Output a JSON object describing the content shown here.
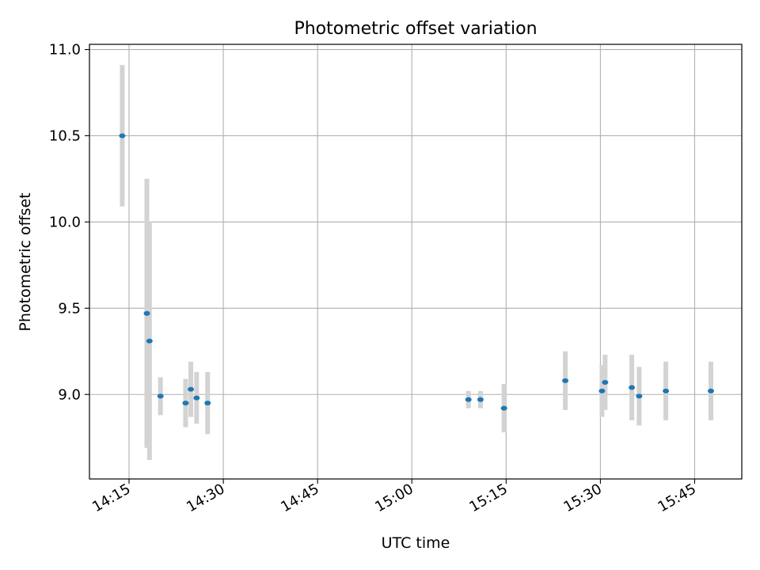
{
  "chart_data": {
    "type": "scatter",
    "title": "Photometric offset variation",
    "xlabel": "UTC time",
    "ylabel": "Photometric offset",
    "x_ticks": [
      "14:15",
      "14:30",
      "14:45",
      "15:00",
      "15:15",
      "15:30",
      "15:45"
    ],
    "x_tick_minutes": [
      855,
      870,
      885,
      900,
      915,
      930,
      945
    ],
    "y_ticks": [
      "9.0",
      "9.5",
      "10.0",
      "10.5",
      "11.0"
    ],
    "y_tick_values": [
      9.0,
      9.5,
      10.0,
      10.5,
      11.0
    ],
    "xlim_minutes": [
      848.7,
      952.5
    ],
    "ylim": [
      8.51,
      11.03
    ],
    "grid": true,
    "series": [
      {
        "points": [
          {
            "x": "14:13:55",
            "y": 10.5,
            "err": 0.41
          },
          {
            "x": "14:17:50",
            "y": 9.47,
            "err": 0.78
          },
          {
            "x": "14:18:15",
            "y": 9.31,
            "err": 0.69
          },
          {
            "x": "14:20:00",
            "y": 8.99,
            "err": 0.11
          },
          {
            "x": "14:24:00",
            "y": 8.95,
            "err": 0.14
          },
          {
            "x": "14:24:50",
            "y": 9.03,
            "err": 0.16
          },
          {
            "x": "14:25:45",
            "y": 8.98,
            "err": 0.15
          },
          {
            "x": "14:27:30",
            "y": 8.95,
            "err": 0.18
          },
          {
            "x": "15:09:00",
            "y": 8.97,
            "err": 0.05
          },
          {
            "x": "15:10:55",
            "y": 8.97,
            "err": 0.05
          },
          {
            "x": "15:14:40",
            "y": 8.92,
            "err": 0.14
          },
          {
            "x": "15:24:25",
            "y": 9.08,
            "err": 0.17
          },
          {
            "x": "15:30:15",
            "y": 9.02,
            "err": 0.15
          },
          {
            "x": "15:30:45",
            "y": 9.07,
            "err": 0.16
          },
          {
            "x": "15:35:00",
            "y": 9.04,
            "err": 0.19
          },
          {
            "x": "15:36:10",
            "y": 8.99,
            "err": 0.17
          },
          {
            "x": "15:40:25",
            "y": 9.02,
            "err": 0.17
          },
          {
            "x": "15:47:35",
            "y": 9.02,
            "err": 0.17
          }
        ]
      }
    ]
  },
  "colors": {
    "point": "#1f77b4",
    "errorbar": "#d3d3d3",
    "grid": "#b0b0b0",
    "axis": "#000000"
  }
}
